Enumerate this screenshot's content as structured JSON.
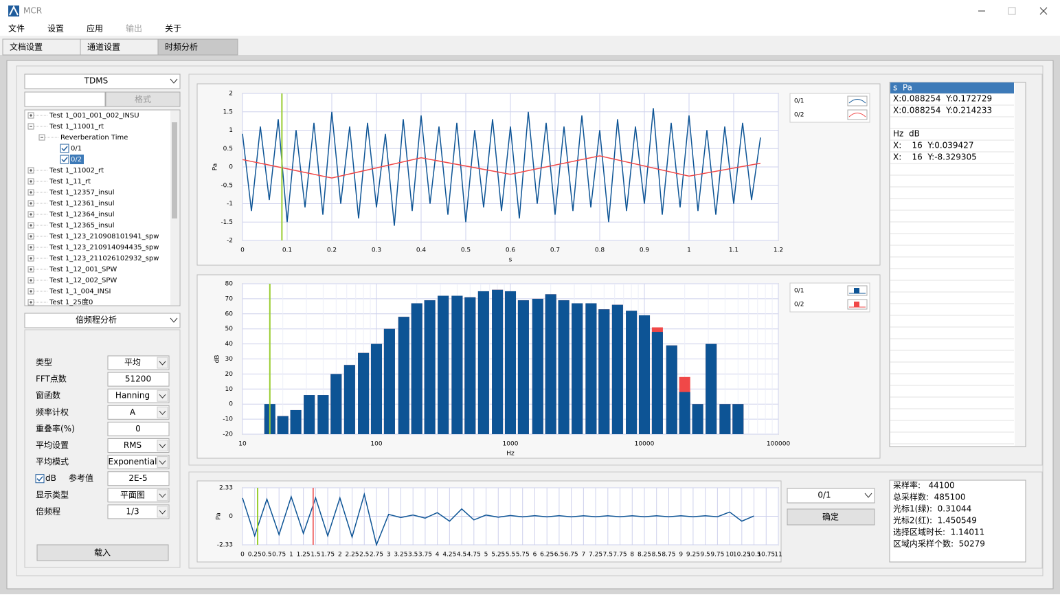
{
  "window": {
    "title": "MCR"
  },
  "menu": [
    {
      "label": "文件",
      "enabled": true
    },
    {
      "label": "设置",
      "enabled": true
    },
    {
      "label": "应用",
      "enabled": true
    },
    {
      "label": "输出",
      "enabled": false
    },
    {
      "label": "关于",
      "enabled": true
    }
  ],
  "tabs": [
    {
      "label": "文档设置",
      "active": false
    },
    {
      "label": "通道设置",
      "active": false
    },
    {
      "label": "时频分析",
      "active": true
    }
  ],
  "source_select": "TDMS",
  "format_button": "格式",
  "tree": [
    {
      "label": "Test 1_001_001_002_INSU"
    },
    {
      "label": "Test 1_11001_rt",
      "children": [
        {
          "label": "Reverberation Time",
          "children": [
            {
              "label": "0/1",
              "checked": true
            },
            {
              "label": "0/2",
              "checked": true,
              "selected": true
            }
          ]
        }
      ]
    },
    {
      "label": "Test 1_11002_rt"
    },
    {
      "label": "Test 1_11_rt"
    },
    {
      "label": "Test 1_12357_insul"
    },
    {
      "label": "Test 1_12361_insul"
    },
    {
      "label": "Test 1_12364_insul"
    },
    {
      "label": "Test 1_12365_insul"
    },
    {
      "label": "Test 1_123_210908101941_spw"
    },
    {
      "label": "Test 1_123_210914094435_spw"
    },
    {
      "label": "Test 1_123_211026102932_spw"
    },
    {
      "label": "Test 1_12_001_SPW"
    },
    {
      "label": "Test 1_12_002_SPW"
    },
    {
      "label": "Test 1_1_004_INSI"
    },
    {
      "label": "Test 1_25度0"
    }
  ],
  "analysis_select": "倍频程分析",
  "form": [
    {
      "label": "类型",
      "value": "平均",
      "control": "select"
    },
    {
      "label": "FFT点数",
      "value": "51200",
      "control": "input"
    },
    {
      "label": "窗函数",
      "value": "Hanning",
      "control": "select"
    },
    {
      "label": "频率计权",
      "value": "A",
      "control": "select"
    },
    {
      "label": "重叠率(%)",
      "value": "0",
      "control": "input"
    },
    {
      "label": "平均设置",
      "value": "RMS",
      "control": "select"
    },
    {
      "label": "平均模式",
      "value": "Exponential",
      "control": "select"
    },
    {
      "label": "dB",
      "checked": true,
      "sublabel": "参考值",
      "value": "2E-5",
      "control": "input"
    },
    {
      "label": "显示类型",
      "value": "平面图",
      "control": "select"
    },
    {
      "label": "倍频程",
      "value": "1/3",
      "control": "select"
    }
  ],
  "load_button": "载入",
  "readout": {
    "time_header": "s  Pa",
    "time_rows": [
      "X:0.088254  Y:0.172729",
      "X:0.088254  Y:0.214233"
    ],
    "freq_header": "Hz  dB",
    "freq_rows": [
      "X:    16  Y:0.039427",
      "X:    16  Y:-8.329305"
    ]
  },
  "channel_select": "0/1",
  "confirm_button": "确定",
  "info": [
    "采样率:   44100",
    "总采样数:  485100",
    "光标1(绿):  0.31044",
    "光标2(红):  1.450549",
    "选择区域时长:  1.14011",
    "区域内采样个数:  50279"
  ],
  "chart_data": [
    {
      "type": "line",
      "xlabel": "s",
      "ylabel": "Pa",
      "xlim": [
        0,
        1.2
      ],
      "ylim": [
        -2,
        2
      ],
      "xticks": [
        0,
        0.1,
        0.2,
        0.3,
        0.4,
        0.5,
        0.6,
        0.7,
        0.8,
        0.9,
        1,
        1.1,
        1.2
      ],
      "yticks": [
        2,
        1.5,
        1,
        0.5,
        0,
        -0.5,
        -1,
        -1.5,
        -2
      ],
      "grid": true,
      "cursors": [
        {
          "x": 0.088254,
          "color": "#9acd32"
        }
      ],
      "series": [
        {
          "name": "0/1",
          "color": "#0d5495",
          "x": [
            0,
            0.02,
            0.04,
            0.06,
            0.08,
            0.1,
            0.12,
            0.14,
            0.16,
            0.18,
            0.2,
            0.22,
            0.24,
            0.26,
            0.28,
            0.3,
            0.32,
            0.34,
            0.36,
            0.38,
            0.4,
            0.42,
            0.44,
            0.46,
            0.48,
            0.5,
            0.52,
            0.54,
            0.56,
            0.58,
            0.6,
            0.62,
            0.64,
            0.66,
            0.68,
            0.7,
            0.72,
            0.74,
            0.76,
            0.78,
            0.8,
            0.82,
            0.84,
            0.86,
            0.88,
            0.9,
            0.92,
            0.94,
            0.96,
            0.98,
            1,
            1.02,
            1.04,
            1.06,
            1.08,
            1.1,
            1.12,
            1.14,
            1.16
          ],
          "values": [
            0.9,
            -1.2,
            1.1,
            -0.9,
            1.3,
            -1.5,
            1.0,
            -1.1,
            1.2,
            -1.3,
            1.5,
            -1.0,
            1.1,
            -1.4,
            1.2,
            -1.1,
            0.9,
            -1.6,
            1.3,
            -1.2,
            1.4,
            -1.0,
            1.1,
            -1.3,
            1.2,
            -1.5,
            1.0,
            -1.1,
            1.3,
            -1.2,
            1.1,
            -1.4,
            1.5,
            -1.0,
            1.2,
            -1.3,
            1.1,
            -1.2,
            1.4,
            -1.1,
            1.0,
            -1.5,
            1.3,
            -1.2,
            1.1,
            -1.0,
            1.6,
            -1.3,
            1.2,
            -1.1,
            1.4,
            -1.2,
            1.0,
            -1.3,
            1.1,
            -1.0,
            1.2,
            -0.9,
            0.8
          ]
        },
        {
          "name": "0/2",
          "color": "#f04848",
          "x": [
            0,
            0.2,
            0.4,
            0.6,
            0.8,
            1,
            1.16
          ],
          "values": [
            0.2,
            -0.3,
            0.25,
            -0.2,
            0.3,
            -0.25,
            0.1
          ]
        }
      ]
    },
    {
      "type": "bar",
      "xlabel": "Hz",
      "ylabel": "dB",
      "xscale": "log",
      "xlim": [
        10,
        100000
      ],
      "ylim": [
        -20,
        80
      ],
      "xticks": [
        10,
        100,
        1000,
        10000,
        100000
      ],
      "yticks": [
        80,
        70,
        60,
        50,
        40,
        30,
        20,
        10,
        0,
        -10,
        -20
      ],
      "grid": true,
      "cursors": [
        {
          "x": 16,
          "color": "#9acd32"
        }
      ],
      "x": [
        16,
        20,
        25,
        31.5,
        40,
        50,
        63,
        80,
        100,
        125,
        160,
        200,
        250,
        315,
        400,
        500,
        630,
        800,
        1000,
        1250,
        1600,
        2000,
        2500,
        3150,
        4000,
        5000,
        6300,
        8000,
        10000,
        12500,
        16000,
        20000,
        25000,
        31500,
        40000,
        50000
      ],
      "series": [
        {
          "name": "0/1",
          "color": "#0d5495",
          "values": [
            0.04,
            -8,
            -4,
            6,
            6,
            20,
            26,
            34,
            40,
            50,
            58,
            67,
            69,
            72,
            72,
            71,
            75,
            76,
            75,
            69,
            70,
            73,
            69,
            67,
            67,
            63,
            66,
            62,
            59,
            48,
            39,
            8,
            0,
            40,
            0,
            0
          ]
        },
        {
          "name": "0/2",
          "color": "#f04848",
          "values": [
            -8.33,
            -8,
            -4,
            6,
            6,
            20,
            26,
            34,
            40,
            50,
            58,
            67,
            69,
            72,
            72,
            71,
            75,
            76,
            75,
            69,
            70,
            73,
            69,
            67,
            67,
            63,
            66,
            62,
            59,
            51,
            39,
            18,
            0,
            40,
            0,
            0
          ]
        }
      ]
    },
    {
      "type": "line",
      "ylabel": "Pa",
      "xlim": [
        0,
        11
      ],
      "ylim": [
        -2.33,
        2.33
      ],
      "xticks": [
        0,
        0.25,
        0.5,
        0.75,
        1,
        1.25,
        1.5,
        1.75,
        2,
        2.25,
        2.5,
        2.75,
        3,
        3.25,
        3.5,
        3.75,
        4,
        4.25,
        4.5,
        4.75,
        5,
        5.25,
        5.5,
        5.75,
        6,
        6.25,
        6.5,
        6.75,
        7,
        7.25,
        7.5,
        7.75,
        8,
        8.25,
        8.5,
        8.75,
        9,
        9.25,
        9.5,
        9.75,
        10,
        10.25,
        10.5,
        10.75,
        11
      ],
      "yticks": [
        2.33,
        0,
        -2.33
      ],
      "grid": true,
      "cursors": [
        {
          "x": 0.31044,
          "color": "#9acd32"
        },
        {
          "x": 1.450549,
          "color": "#f07070"
        }
      ],
      "series": [
        {
          "name": "0/1",
          "color": "#0d5495",
          "x": [
            0,
            0.25,
            0.5,
            0.75,
            1,
            1.25,
            1.5,
            1.75,
            2,
            2.25,
            2.5,
            2.75,
            3,
            3.25,
            3.5,
            3.75,
            4,
            4.25,
            4.5,
            4.75,
            5,
            5.25,
            5.5,
            5.75,
            6,
            6.25,
            6.5,
            6.75,
            7,
            7.25,
            7.5,
            7.75,
            8,
            8.25,
            8.5,
            8.75,
            9,
            9.25,
            9.5,
            9.75,
            10,
            10.25,
            10.5
          ],
          "values": [
            1.5,
            -1.6,
            1.4,
            -1.5,
            1.6,
            -1.4,
            1.5,
            -1.6,
            1.5,
            -1.7,
            1.8,
            -2.33,
            0.15,
            -0.1,
            0.1,
            -0.15,
            0.3,
            -0.4,
            0.6,
            -0.3,
            0.1,
            -0.08,
            0.06,
            -0.05,
            0.05,
            -0.05,
            0.05,
            -0.05,
            0.04,
            -0.04,
            0.04,
            -0.04,
            0.04,
            -0.04,
            0.04,
            -0.04,
            0.04,
            -0.04,
            0.04,
            -0.04,
            0.35,
            -0.4,
            0.02
          ]
        }
      ]
    }
  ]
}
